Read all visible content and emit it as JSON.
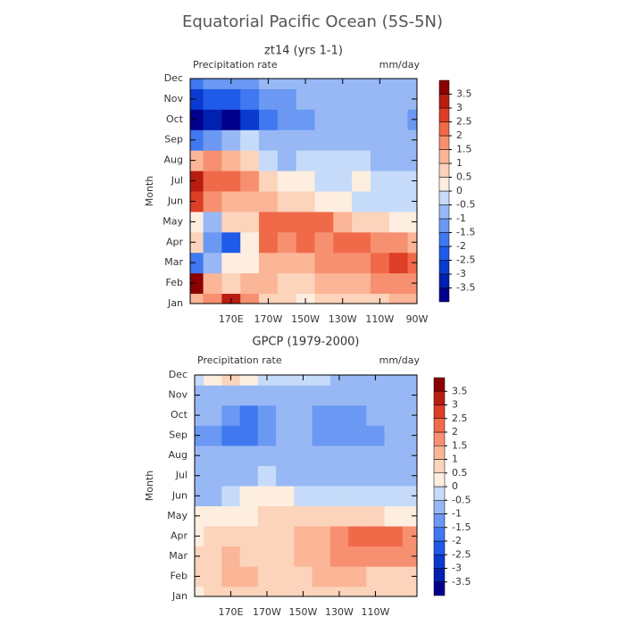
{
  "title": "Equatorial Pacific Ocean (5S-5N)",
  "chart_data": [
    {
      "type": "contour",
      "title": "zt14 (yrs 1-1)",
      "left_label": "Precipitation rate",
      "right_label": "mm/day",
      "ylabel": "Month",
      "categories": [
        "Jan",
        "Feb",
        "Mar",
        "Apr",
        "May",
        "Jun",
        "Jul",
        "Aug",
        "Sep",
        "Oct",
        "Nov",
        "Dec"
      ],
      "x": [
        150,
        160,
        170,
        180,
        190,
        200,
        210,
        220,
        230,
        240,
        250,
        260,
        270
      ],
      "xlim": [
        148,
        270
      ],
      "xticks": [
        {
          "value": 170,
          "label": "170E"
        },
        {
          "value": 190,
          "label": "170W"
        },
        {
          "value": 210,
          "label": "150W"
        },
        {
          "value": 230,
          "label": "130W"
        },
        {
          "value": 250,
          "label": "110W"
        },
        {
          "value": 270,
          "label": "90W"
        }
      ],
      "levels": [
        -3.5,
        -3,
        -2.5,
        -2,
        -1.5,
        -1,
        -0.5,
        0,
        0.5,
        1,
        1.5,
        2,
        2.5,
        3,
        3.5
      ],
      "colors": [
        "#00008b",
        "#0020b0",
        "#0a3ad0",
        "#1f5be8",
        "#3f78f0",
        "#6a98f2",
        "#97b8f5",
        "#c6dbf9",
        "#fdeee0",
        "#fcd3bb",
        "#fbb597",
        "#f69070",
        "#f06a4a",
        "#dd3e26",
        "#b81e10",
        "#8b0000"
      ],
      "z": [
        [
          1.5,
          2,
          3.5,
          2,
          1,
          0.8,
          0.5,
          0.7,
          0.8,
          1,
          1,
          1.2,
          1.2
        ],
        [
          4,
          1.5,
          1,
          1.5,
          1.2,
          1,
          1,
          1.2,
          1.5,
          1.5,
          1.8,
          2,
          2
        ],
        [
          -1.5,
          -0.5,
          0.5,
          0.5,
          1.5,
          1.2,
          1.5,
          1.8,
          2,
          1.8,
          2.2,
          2.8,
          2.5
        ],
        [
          1,
          -1,
          -2,
          0.5,
          2.5,
          2,
          2.2,
          2,
          2.5,
          2.5,
          2,
          1.8,
          1.5
        ],
        [
          0.5,
          -0.5,
          1,
          1,
          2.5,
          2.5,
          2.5,
          2.2,
          1.5,
          1,
          0.8,
          0.5,
          0.3
        ],
        [
          3,
          2,
          1.5,
          1.5,
          1.2,
          1,
          0.8,
          0.5,
          0.2,
          -0.2,
          -0.3,
          -0.3,
          -0.3
        ],
        [
          3.5,
          2.5,
          2.5,
          2,
          1,
          0.5,
          0.2,
          -0.3,
          -0.3,
          0.2,
          -0.3,
          -0.4,
          -0.4
        ],
        [
          1.5,
          2,
          1.5,
          1,
          -0.3,
          -0.5,
          -0.3,
          -0.3,
          -0.4,
          -0.4,
          -0.5,
          -0.6,
          -0.6
        ],
        [
          -1.5,
          -1,
          -0.5,
          -0.3,
          -0.6,
          -0.8,
          -0.8,
          -0.7,
          -0.7,
          -0.6,
          -0.7,
          -0.7,
          -0.8
        ],
        [
          -3.5,
          -3.2,
          -4,
          -2.5,
          -1.5,
          -1.2,
          -1,
          -0.8,
          -0.8,
          -0.8,
          -0.8,
          -0.8,
          -1.2
        ],
        [
          -2.5,
          -2,
          -2.2,
          -1.8,
          -1.2,
          -1,
          -0.8,
          -0.7,
          -0.7,
          -0.7,
          -0.7,
          -0.7,
          -0.8
        ],
        [
          -1.5,
          -1.2,
          -1,
          -1,
          -0.8,
          -0.7,
          -0.7,
          -0.6,
          -0.6,
          -0.6,
          -0.6,
          -0.6,
          -0.6
        ]
      ]
    },
    {
      "type": "contour",
      "title": "GPCP (1979-2000)",
      "left_label": "Precipitation rate",
      "right_label": "mm/day",
      "ylabel": "Month",
      "categories": [
        "Jan",
        "Feb",
        "Mar",
        "Apr",
        "May",
        "Jun",
        "Jul",
        "Aug",
        "Sep",
        "Oct",
        "Nov",
        "Dec"
      ],
      "x": [
        150,
        160,
        170,
        180,
        190,
        200,
        210,
        220,
        230,
        240,
        250,
        260,
        270
      ],
      "xlim": [
        150,
        273
      ],
      "xticks": [
        {
          "value": 170,
          "label": "170E"
        },
        {
          "value": 190,
          "label": "170W"
        },
        {
          "value": 210,
          "label": "150W"
        },
        {
          "value": 230,
          "label": "130W"
        },
        {
          "value": 250,
          "label": "110W"
        }
      ],
      "levels": [
        -3.5,
        -3,
        -2.5,
        -2,
        -1.5,
        -1,
        -0.5,
        0,
        0.5,
        1,
        1.5,
        2,
        2.5,
        3,
        3.5
      ],
      "colors": [
        "#00008b",
        "#0020b0",
        "#0a3ad0",
        "#1f5be8",
        "#3f78f0",
        "#6a98f2",
        "#97b8f5",
        "#c6dbf9",
        "#fdeee0",
        "#fcd3bb",
        "#fbb597",
        "#f69070",
        "#f06a4a",
        "#dd3e26",
        "#b81e10",
        "#8b0000"
      ],
      "z": [
        [
          0.5,
          0.8,
          1,
          1,
          0.8,
          0.7,
          0.7,
          0.8,
          0.8,
          0.8,
          0.7,
          0.6,
          0.6
        ],
        [
          0.6,
          1,
          1.5,
          1.2,
          1,
          0.8,
          1,
          1.2,
          1.2,
          1.2,
          1,
          0.8,
          0.8
        ],
        [
          0.6,
          1,
          1.5,
          1,
          1,
          1,
          1.2,
          1.5,
          1.8,
          2,
          2,
          2,
          1.8
        ],
        [
          0.5,
          0.8,
          1,
          0.8,
          0.8,
          1,
          1.2,
          1.5,
          2,
          2.2,
          2.2,
          2.2,
          2
        ],
        [
          0.2,
          0.5,
          0.5,
          0.5,
          0.8,
          0.8,
          1,
          1,
          1,
          1,
          0.8,
          0.5,
          0.5
        ],
        [
          -0.5,
          -0.5,
          -0.3,
          0.2,
          0.5,
          0.2,
          -0.2,
          -0.3,
          -0.3,
          -0.4,
          -0.4,
          -0.4,
          -0.4
        ],
        [
          -0.8,
          -0.7,
          -0.6,
          -0.6,
          -0.4,
          -0.5,
          -0.5,
          -0.6,
          -0.6,
          -0.6,
          -0.6,
          -0.6,
          -0.6
        ],
        [
          -0.8,
          -0.7,
          -0.8,
          -0.8,
          -0.6,
          -0.6,
          -0.7,
          -0.8,
          -0.8,
          -0.8,
          -0.8,
          -0.7,
          -0.7
        ],
        [
          -1.2,
          -1,
          -1.5,
          -1.6,
          -1.2,
          -0.8,
          -0.8,
          -1.1,
          -1.1,
          -1.1,
          -1.1,
          -0.8,
          -0.7
        ],
        [
          -0.8,
          -0.9,
          -1.2,
          -1.6,
          -1.2,
          -0.8,
          -0.8,
          -1.1,
          -1.2,
          -1.1,
          -0.9,
          -0.7,
          -0.7
        ],
        [
          -0.6,
          -0.7,
          -0.8,
          -0.8,
          -0.7,
          -0.6,
          -0.6,
          -0.7,
          -0.7,
          -0.6,
          -0.6,
          -0.6,
          -0.6
        ],
        [
          -0.3,
          0.3,
          0.6,
          0.3,
          -0.3,
          -0.4,
          -0.4,
          -0.4,
          -0.5,
          -0.5,
          -0.5,
          -0.5,
          -0.5
        ]
      ]
    }
  ]
}
